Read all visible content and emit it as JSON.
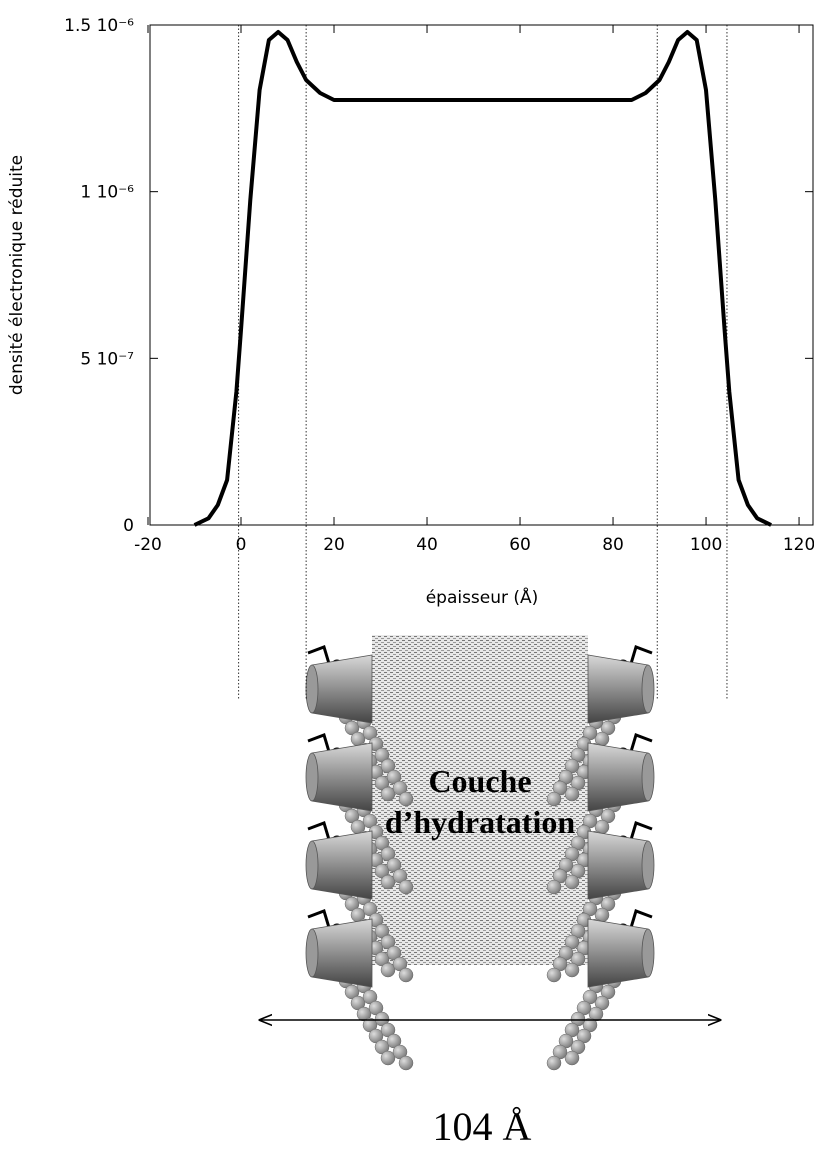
{
  "chart_data": {
    "type": "line",
    "x_label": "épaisseur (Å)",
    "y_label": "densité électronique réduite",
    "x": [
      -10,
      -7,
      -5,
      -3,
      -1,
      0,
      2,
      4,
      6,
      8,
      10,
      12,
      14,
      17,
      20,
      25,
      52,
      79,
      84,
      87,
      90,
      92,
      94,
      96,
      98,
      100,
      102,
      104,
      105,
      107,
      109,
      111,
      114
    ],
    "series": [
      {
        "color": "#000000",
        "values": [
          0,
          2e-08,
          6e-08,
          1.35e-07,
          4e-07,
          5.85e-07,
          9.75e-07,
          1.305e-06,
          1.455e-06,
          1.479e-06,
          1.455e-06,
          1.389e-06,
          1.335e-06,
          1.296e-06,
          1.275e-06,
          1.275e-06,
          1.275e-06,
          1.275e-06,
          1.275e-06,
          1.296e-06,
          1.335e-06,
          1.389e-06,
          1.455e-06,
          1.479e-06,
          1.455e-06,
          1.305e-06,
          9.75e-07,
          5.85e-07,
          4e-07,
          1.35e-07,
          6e-08,
          2e-08,
          0
        ]
      }
    ],
    "reference_lines": [
      -0.5,
      14,
      89.5,
      104.5
    ],
    "xlim": [
      -20,
      123
    ],
    "ylim": [
      0,
      1.5e-06
    ],
    "xticks": [
      -20,
      0,
      20,
      40,
      60,
      80,
      100,
      120
    ],
    "yticks": [
      0,
      {
        "value": 5e-07,
        "label": "5 10⁻⁷"
      },
      {
        "value": 1e-06,
        "label": "1 10⁻⁶"
      },
      {
        "value": 1.5e-06,
        "label": "1.5 10⁻⁶"
      }
    ]
  },
  "diagram": {
    "layer_label": [
      "Couche",
      "d’hydratation"
    ],
    "width_label": "104 Å"
  }
}
